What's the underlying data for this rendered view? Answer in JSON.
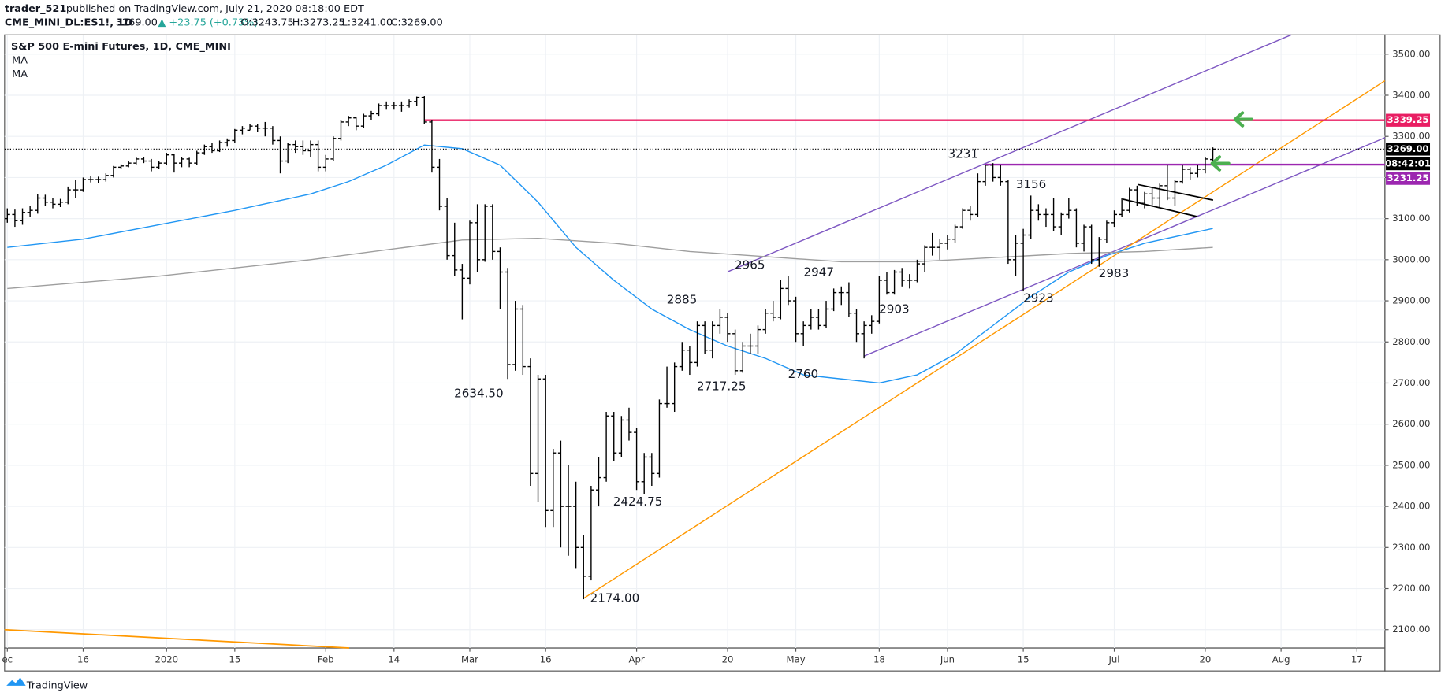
{
  "header": {
    "author": "trader_521",
    "published": "published on TradingView.com, July 21, 2020 08:18:00 EDT",
    "symbol": "CME_MINI_DL:ES1!, 1D",
    "last": "3269.00",
    "change": "▲ +23.75 (+0.73%)",
    "open": "O:3243.75",
    "high": "H:3273.25",
    "low": "L:3241.00",
    "close": "C:3269.00"
  },
  "footer": {
    "brand": "TradingView"
  },
  "chart_data": {
    "type": "ohlc",
    "title": "S&P 500 E-mini Futures, 1D, CME_MINI",
    "color": "#000000",
    "bars": [
      [
        3100,
        3125,
        3090,
        3110
      ],
      [
        3110,
        3122,
        3080,
        3095
      ],
      [
        3095,
        3125,
        3085,
        3115
      ],
      [
        3115,
        3130,
        3105,
        3120
      ],
      [
        3120,
        3160,
        3112,
        3150
      ],
      [
        3150,
        3158,
        3130,
        3140
      ],
      [
        3140,
        3150,
        3125,
        3135
      ],
      [
        3135,
        3148,
        3128,
        3140
      ],
      [
        3140,
        3178,
        3135,
        3170
      ],
      [
        3170,
        3195,
        3150,
        3170
      ],
      [
        3170,
        3200,
        3165,
        3195
      ],
      [
        3195,
        3203,
        3188,
        3195
      ],
      [
        3195,
        3202,
        3186,
        3195
      ],
      [
        3195,
        3210,
        3190,
        3205
      ],
      [
        3205,
        3228,
        3200,
        3225
      ],
      [
        3225,
        3232,
        3220,
        3228
      ],
      [
        3228,
        3240,
        3225,
        3235
      ],
      [
        3235,
        3250,
        3232,
        3245
      ],
      [
        3245,
        3250,
        3235,
        3240
      ],
      [
        3240,
        3245,
        3215,
        3225
      ],
      [
        3225,
        3240,
        3220,
        3235
      ],
      [
        3235,
        3260,
        3230,
        3255
      ],
      [
        3255,
        3258,
        3212,
        3235
      ],
      [
        3235,
        3250,
        3225,
        3245
      ],
      [
        3245,
        3248,
        3225,
        3235
      ],
      [
        3235,
        3265,
        3230,
        3260
      ],
      [
        3260,
        3280,
        3255,
        3275
      ],
      [
        3275,
        3285,
        3260,
        3265
      ],
      [
        3265,
        3290,
        3262,
        3285
      ],
      [
        3285,
        3295,
        3275,
        3290
      ],
      [
        3290,
        3318,
        3285,
        3315
      ],
      [
        3315,
        3325,
        3305,
        3320
      ],
      [
        3315,
        3330,
        3315,
        3325
      ],
      [
        3325,
        3330,
        3310,
        3320
      ],
      [
        3320,
        3335,
        3300,
        3320
      ],
      [
        3320,
        3325,
        3280,
        3290
      ],
      [
        3290,
        3300,
        3210,
        3240
      ],
      [
        3240,
        3285,
        3235,
        3280
      ],
      [
        3280,
        3290,
        3260,
        3275
      ],
      [
        3275,
        3290,
        3255,
        3265
      ],
      [
        3265,
        3290,
        3250,
        3280
      ],
      [
        3280,
        3290,
        3215,
        3225
      ],
      [
        3225,
        3255,
        3215,
        3245
      ],
      [
        3245,
        3300,
        3240,
        3295
      ],
      [
        3295,
        3340,
        3290,
        3335
      ],
      [
        3335,
        3350,
        3325,
        3345
      ],
      [
        3345,
        3348,
        3315,
        3325
      ],
      [
        3325,
        3355,
        3320,
        3350
      ],
      [
        3350,
        3362,
        3340,
        3355
      ],
      [
        3355,
        3380,
        3350,
        3375
      ],
      [
        3375,
        3385,
        3365,
        3375
      ],
      [
        3375,
        3383,
        3365,
        3375
      ],
      [
        3375,
        3385,
        3360,
        3375
      ],
      [
        3375,
        3390,
        3370,
        3385
      ],
      [
        3385,
        3397,
        3375,
        3395
      ],
      [
        3395,
        3398,
        3330,
        3335
      ],
      [
        3335,
        3340,
        3212,
        3225
      ],
      [
        3225,
        3245,
        3120,
        3130
      ],
      [
        3130,
        3150,
        3000,
        3010
      ],
      [
        3010,
        3090,
        2960,
        2975
      ],
      [
        2975,
        2990,
        2855,
        2955
      ],
      [
        2955,
        3095,
        2940,
        3090
      ],
      [
        3090,
        3135,
        2970,
        3000
      ],
      [
        3000,
        3135,
        2995,
        3130
      ],
      [
        3130,
        3135,
        3000,
        3020
      ],
      [
        3020,
        3030,
        2880,
        2970
      ],
      [
        2970,
        2980,
        2710,
        2745
      ],
      [
        2745,
        2900,
        2730,
        2880
      ],
      [
        2880,
        2890,
        2720,
        2740
      ],
      [
        2740,
        2760,
        2450,
        2480
      ],
      [
        2480,
        2720,
        2410,
        2710
      ],
      [
        2710,
        2720,
        2350,
        2390
      ],
      [
        2390,
        2540,
        2350,
        2530
      ],
      [
        2530,
        2560,
        2300,
        2400
      ],
      [
        2400,
        2500,
        2280,
        2400
      ],
      [
        2400,
        2460,
        2250,
        2300
      ],
      [
        2300,
        2330,
        2174,
        2230
      ],
      [
        2230,
        2450,
        2220,
        2440
      ],
      [
        2440,
        2520,
        2400,
        2470
      ],
      [
        2470,
        2630,
        2460,
        2620
      ],
      [
        2620,
        2630,
        2510,
        2530
      ],
      [
        2530,
        2620,
        2520,
        2610
      ],
      [
        2610,
        2640,
        2560,
        2580
      ],
      [
        2580,
        2590,
        2440,
        2460
      ],
      [
        2460,
        2530,
        2430,
        2520
      ],
      [
        2520,
        2530,
        2450,
        2480
      ],
      [
        2480,
        2660,
        2470,
        2650
      ],
      [
        2650,
        2740,
        2640,
        2650
      ],
      [
        2650,
        2750,
        2630,
        2740
      ],
      [
        2740,
        2800,
        2730,
        2780
      ],
      [
        2780,
        2790,
        2720,
        2750
      ],
      [
        2750,
        2850,
        2740,
        2840
      ],
      [
        2840,
        2850,
        2770,
        2780
      ],
      [
        2780,
        2850,
        2760,
        2840
      ],
      [
        2840,
        2880,
        2820,
        2860
      ],
      [
        2860,
        2870,
        2800,
        2820
      ],
      [
        2820,
        2830,
        2720,
        2730
      ],
      [
        2730,
        2800,
        2725,
        2790
      ],
      [
        2790,
        2820,
        2770,
        2790
      ],
      [
        2790,
        2840,
        2770,
        2830
      ],
      [
        2830,
        2880,
        2820,
        2870
      ],
      [
        2870,
        2900,
        2850,
        2860
      ],
      [
        2860,
        2950,
        2855,
        2930
      ],
      [
        2930,
        2960,
        2890,
        2900
      ],
      [
        2900,
        2910,
        2800,
        2820
      ],
      [
        2820,
        2850,
        2790,
        2840
      ],
      [
        2840,
        2880,
        2830,
        2860
      ],
      [
        2860,
        2880,
        2830,
        2840
      ],
      [
        2840,
        2900,
        2835,
        2880
      ],
      [
        2880,
        2930,
        2875,
        2920
      ],
      [
        2920,
        2935,
        2890,
        2920
      ],
      [
        2920,
        2945,
        2860,
        2870
      ],
      [
        2870,
        2880,
        2800,
        2820
      ],
      [
        2820,
        2850,
        2760,
        2840
      ],
      [
        2840,
        2865,
        2820,
        2850
      ],
      [
        2850,
        2960,
        2845,
        2950
      ],
      [
        2950,
        2970,
        2915,
        2920
      ],
      [
        2920,
        2975,
        2915,
        2970
      ],
      [
        2970,
        2980,
        2935,
        2950
      ],
      [
        2950,
        2965,
        2930,
        2950
      ],
      [
        2950,
        3000,
        2945,
        2990
      ],
      [
        2990,
        3035,
        2970,
        3030
      ],
      [
        3030,
        3065,
        3010,
        3030
      ],
      [
        3030,
        3050,
        3000,
        3040
      ],
      [
        3040,
        3060,
        3025,
        3050
      ],
      [
        3050,
        3085,
        3040,
        3080
      ],
      [
        3080,
        3125,
        3075,
        3120
      ],
      [
        3120,
        3130,
        3095,
        3110
      ],
      [
        3110,
        3210,
        3105,
        3190
      ],
      [
        3190,
        3231,
        3180,
        3230
      ],
      [
        3230,
        3235,
        3190,
        3200
      ],
      [
        3200,
        3230,
        3180,
        3190
      ],
      [
        3190,
        3195,
        2990,
        3000
      ],
      [
        3000,
        3060,
        2960,
        3040
      ],
      [
        3040,
        3075,
        2923,
        3060
      ],
      [
        3060,
        3156,
        3050,
        3120
      ],
      [
        3120,
        3135,
        3095,
        3110
      ],
      [
        3110,
        3125,
        3080,
        3110
      ],
      [
        3110,
        3150,
        3070,
        3080
      ],
      [
        3080,
        3115,
        3060,
        3110
      ],
      [
        3110,
        3150,
        3100,
        3120
      ],
      [
        3120,
        3125,
        3030,
        3040
      ],
      [
        3040,
        3085,
        3020,
        3080
      ],
      [
        3080,
        3085,
        2990,
        3000
      ],
      [
        3000,
        3055,
        2983,
        3050
      ],
      [
        3050,
        3095,
        3040,
        3090
      ],
      [
        3090,
        3120,
        3080,
        3110
      ],
      [
        3110,
        3150,
        3105,
        3120
      ],
      [
        3120,
        3175,
        3115,
        3170
      ],
      [
        3170,
        3180,
        3130,
        3140
      ],
      [
        3140,
        3165,
        3125,
        3160
      ],
      [
        3160,
        3175,
        3130,
        3150
      ],
      [
        3150,
        3185,
        3125,
        3180
      ],
      [
        3180,
        3230,
        3145,
        3150
      ],
      [
        3150,
        3195,
        3130,
        3190
      ],
      [
        3190,
        3230,
        3185,
        3220
      ],
      [
        3220,
        3225,
        3195,
        3210
      ],
      [
        3210,
        3230,
        3200,
        3220
      ],
      [
        3220,
        3250,
        3210,
        3245
      ],
      [
        3243.75,
        3273.25,
        3241,
        3269
      ]
    ],
    "moving_averages": [
      {
        "name": "MA",
        "color": "#2196f3",
        "points": [
          [
            0,
            3030
          ],
          [
            10,
            3050
          ],
          [
            20,
            3085
          ],
          [
            30,
            3120
          ],
          [
            40,
            3160
          ],
          [
            45,
            3190
          ],
          [
            50,
            3230
          ],
          [
            55,
            3279
          ],
          [
            60,
            3270
          ],
          [
            65,
            3230
          ],
          [
            70,
            3140
          ],
          [
            75,
            3030
          ],
          [
            80,
            2950
          ],
          [
            85,
            2880
          ],
          [
            90,
            2830
          ],
          [
            95,
            2790
          ],
          [
            100,
            2760
          ],
          [
            105,
            2720
          ],
          [
            110,
            2710
          ],
          [
            115,
            2700
          ],
          [
            120,
            2720
          ],
          [
            125,
            2770
          ],
          [
            130,
            2840
          ],
          [
            135,
            2910
          ],
          [
            140,
            2970
          ],
          [
            145,
            3010
          ],
          [
            150,
            3040
          ],
          [
            159,
            3076
          ]
        ]
      },
      {
        "name": "MA",
        "color": "#9e9e9e",
        "points": [
          [
            0,
            2930
          ],
          [
            20,
            2960
          ],
          [
            40,
            3000
          ],
          [
            60,
            3048
          ],
          [
            70,
            3052
          ],
          [
            80,
            3040
          ],
          [
            90,
            3020
          ],
          [
            110,
            2995
          ],
          [
            120,
            2995
          ],
          [
            130,
            3005
          ],
          [
            140,
            3015
          ],
          [
            150,
            3020
          ],
          [
            159,
            3030
          ]
        ]
      }
    ],
    "price_lines": [
      {
        "price": 3339.25,
        "color": "#e91e63"
      },
      {
        "price": 3231.25,
        "color": "#9c27b0"
      },
      {
        "price": {
          "value": 3269,
          "label": "3269.00"
        },
        "color": "#000000"
      }
    ],
    "countdown": "08:42:01",
    "annotations": [
      "3231",
      "3156",
      "2965",
      "2947",
      "2885",
      "2903",
      "2923",
      "2983",
      "2634.50",
      "2717.25",
      "2760",
      "2424.75",
      "2174.00"
    ],
    "xlim": [
      -0.36,
      181.7
    ],
    "xticks": [
      {
        "value": 0,
        "label": "ec"
      },
      {
        "value": 10,
        "label": "16"
      },
      {
        "value": 21,
        "label": "2020"
      },
      {
        "value": 30,
        "label": "15"
      },
      {
        "value": 42,
        "label": "Feb"
      },
      {
        "value": 51,
        "label": "14"
      },
      {
        "value": 61,
        "label": "Mar"
      },
      {
        "value": 71,
        "label": "16"
      },
      {
        "value": 83,
        "label": "Apr"
      },
      {
        "value": 95,
        "label": "20"
      },
      {
        "value": 104,
        "label": "May"
      },
      {
        "value": 115,
        "label": "18"
      },
      {
        "value": 124,
        "label": "Jun"
      },
      {
        "value": 134,
        "label": "15"
      },
      {
        "value": 146,
        "label": "Jul"
      },
      {
        "value": 158,
        "label": "20"
      },
      {
        "value": 168,
        "label": "Aug"
      },
      {
        "value": 178,
        "label": "17"
      }
    ],
    "ylim": [
      2055.4,
      3546.9
    ],
    "yticks": [
      {
        "value": 2100,
        "label": "2100.00"
      },
      {
        "value": 2200,
        "label": "2200.00"
      },
      {
        "value": 2300,
        "label": "2300.00"
      },
      {
        "value": 2400,
        "label": "2400.00"
      },
      {
        "value": 2500,
        "label": "2500.00"
      },
      {
        "value": 2600,
        "label": "2600.00"
      },
      {
        "value": 2700,
        "label": "2700.00"
      },
      {
        "value": 2800,
        "label": "2800.00"
      },
      {
        "value": 2900,
        "label": "2900.00"
      },
      {
        "value": 3000,
        "label": "3000.00"
      },
      {
        "value": 3100,
        "label": "3100.00"
      },
      {
        "value": 3200,
        "label": "3200.00"
      },
      {
        "value": 3300,
        "label": "3300.00"
      },
      {
        "value": 3400,
        "label": "3400.00"
      },
      {
        "value": 3500,
        "label": "3500.00"
      }
    ],
    "grid": true
  }
}
